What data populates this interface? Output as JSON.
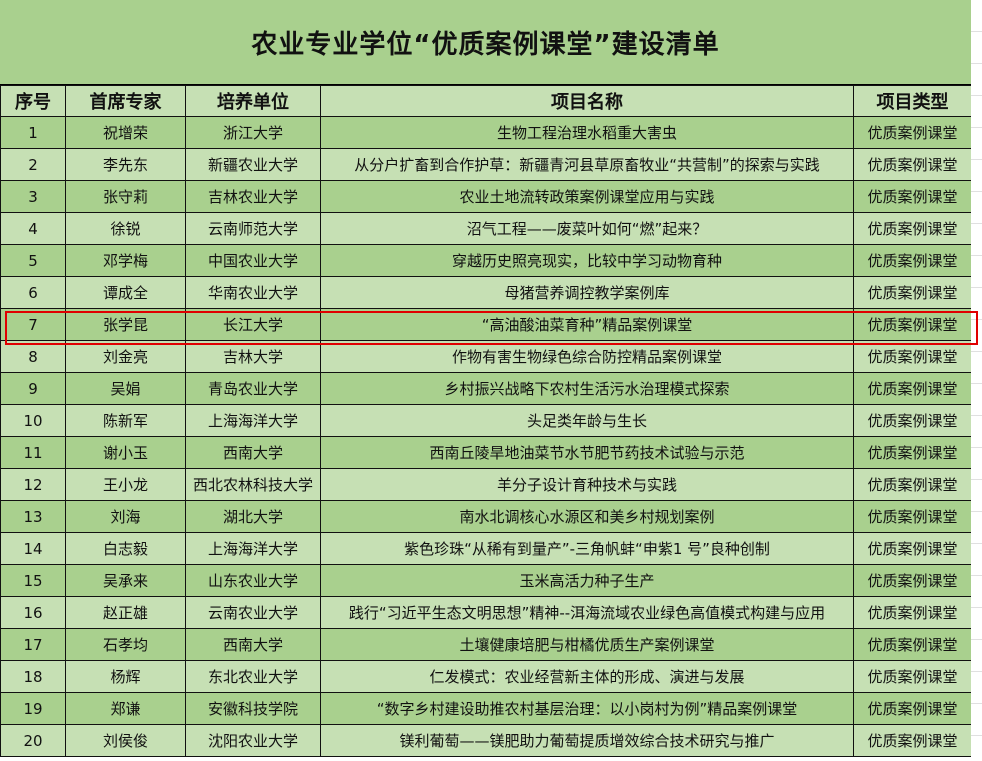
{
  "title": "农业专业学位“优质案例课堂”建设清单",
  "headers": [
    "序号",
    "首席专家",
    "培养单位",
    "项目名称",
    "项目类型"
  ],
  "rows": [
    [
      "1",
      "祝增荣",
      "浙江大学",
      "生物工程治理水稻重大害虫",
      "优质案例课堂"
    ],
    [
      "2",
      "李先东",
      "新疆农业大学",
      "从分户扩畜到合作护草：新疆青河县草原畜牧业“共营制”的探索与实践",
      "优质案例课堂"
    ],
    [
      "3",
      "张守莉",
      "吉林农业大学",
      "农业土地流转政策案例课堂应用与实践",
      "优质案例课堂"
    ],
    [
      "4",
      "徐锐",
      "云南师范大学",
      "沼气工程——废菜叶如何“燃”起来？",
      "优质案例课堂"
    ],
    [
      "5",
      "邓学梅",
      "中国农业大学",
      "穿越历史照亮现实，比较中学习动物育种",
      "优质案例课堂"
    ],
    [
      "6",
      "谭成全",
      "华南农业大学",
      "母猪营养调控教学案例库",
      "优质案例课堂"
    ],
    [
      "7",
      "张学昆",
      "长江大学",
      "“高油酸油菜育种”精品案例课堂",
      "优质案例课堂"
    ],
    [
      "8",
      "刘金亮",
      "吉林大学",
      "作物有害生物绿色综合防控精品案例课堂",
      "优质案例课堂"
    ],
    [
      "9",
      "吴娟",
      "青岛农业大学",
      "乡村振兴战略下农村生活污水治理模式探索",
      "优质案例课堂"
    ],
    [
      "10",
      "陈新军",
      "上海海洋大学",
      "头足类年龄与生长",
      "优质案例课堂"
    ],
    [
      "11",
      "谢小玉",
      "西南大学",
      "西南丘陵旱地油菜节水节肥节药技术试验与示范",
      "优质案例课堂"
    ],
    [
      "12",
      "王小龙",
      "西北农林科技大学",
      "羊分子设计育种技术与实践",
      "优质案例课堂"
    ],
    [
      "13",
      "刘海",
      "湖北大学",
      "南水北调核心水源区和美乡村规划案例",
      "优质案例课堂"
    ],
    [
      "14",
      "白志毅",
      "上海海洋大学",
      "紫色珍珠“从稀有到量产”-三角帆蚌“申紫1 号”良种创制",
      "优质案例课堂"
    ],
    [
      "15",
      "吴承来",
      "山东农业大学",
      "玉米高活力种子生产",
      "优质案例课堂"
    ],
    [
      "16",
      "赵正雄",
      "云南农业大学",
      "践行“习近平生态文明思想”精神--洱海流域农业绿色高值模式构建与应用",
      "优质案例课堂"
    ],
    [
      "17",
      "石孝均",
      "西南大学",
      "土壤健康培肥与柑橘优质生产案例课堂",
      "优质案例课堂"
    ],
    [
      "18",
      "杨辉",
      "东北农业大学",
      "仁发模式：农业经营新主体的形成、演进与发展",
      "优质案例课堂"
    ],
    [
      "19",
      "郑谦",
      "安徽科技学院",
      "“数字乡村建设助推农村基层治理：以小岗村为例”精品案例课堂",
      "优质案例课堂"
    ],
    [
      "20",
      "刘侯俊",
      "沈阳农业大学",
      "镁利葡萄——镁肥助力葡萄提质增效综合技术研究与推广",
      "优质案例课堂"
    ]
  ],
  "highlighted_row": "7",
  "colors": {
    "dark_row": "#a9d08e",
    "light_row": "#c6e0b4",
    "highlight_border": "#e00000"
  }
}
